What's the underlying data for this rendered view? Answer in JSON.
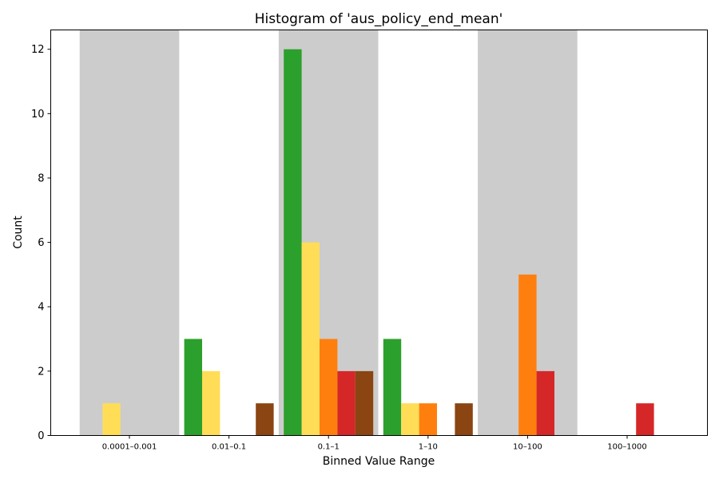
{
  "chart_data": {
    "type": "bar",
    "title": "Histogram of 'aus_policy_end_mean'",
    "xlabel": "Binned Value Range",
    "ylabel": "Count",
    "categories": [
      "0.0001–0.001",
      "0.01–0.1",
      "0.1–1",
      "1–10",
      "10–100",
      "100–1000"
    ],
    "ylim": [
      0,
      12.6
    ],
    "yticks": [
      0,
      2,
      4,
      6,
      8,
      10,
      12
    ],
    "grid": false,
    "shaded_bands": [
      0,
      2,
      4
    ],
    "band_color": "#cccccc",
    "series": [
      {
        "color": "#2ca02c",
        "values": [
          0,
          3,
          12,
          3,
          0,
          0
        ]
      },
      {
        "color": "#ffdd57",
        "values": [
          1,
          2,
          6,
          1,
          0,
          0
        ]
      },
      {
        "color": "#ff7f0e",
        "values": [
          0,
          0,
          3,
          1,
          5,
          0
        ]
      },
      {
        "color": "#d62728",
        "values": [
          0,
          0,
          2,
          0,
          2,
          1
        ]
      },
      {
        "color": "#8b4513",
        "values": [
          0,
          1,
          2,
          1,
          0,
          0
        ]
      }
    ]
  }
}
